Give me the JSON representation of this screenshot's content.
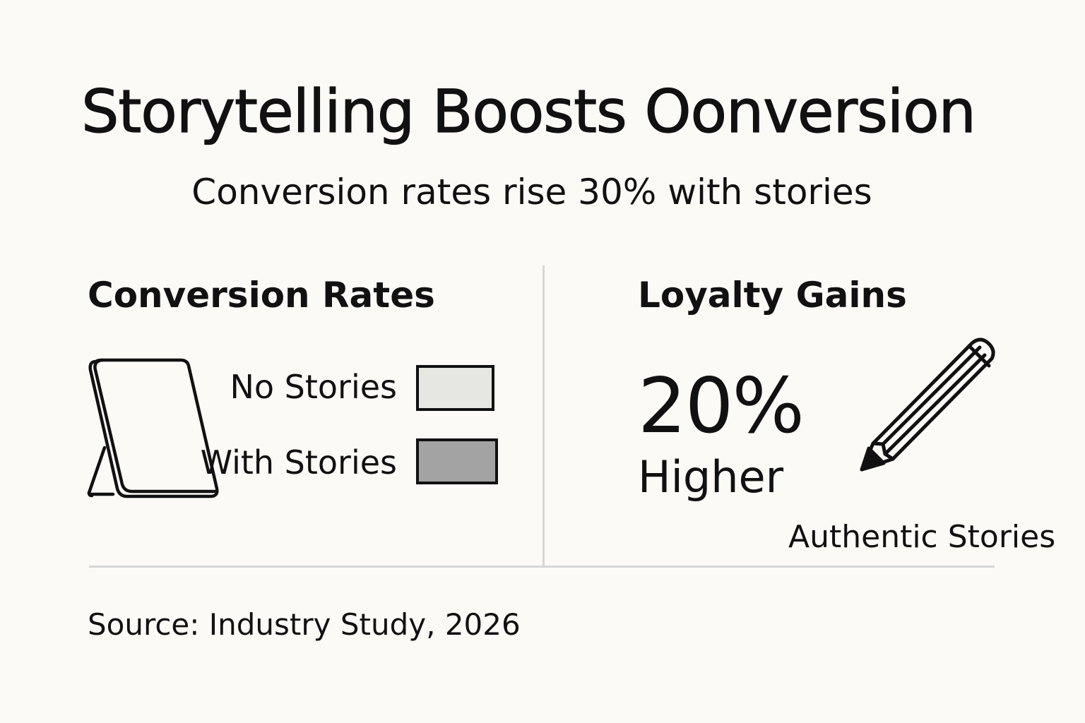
{
  "title": "Storytelling Boosts Oonversion",
  "subtitle": "Conversion rates rise 30% with stories",
  "left_section": {
    "heading": "Conversion Rates",
    "icon": "tablet-icon",
    "legend": [
      {
        "label": "No Stories",
        "color": "#e6e6e2"
      },
      {
        "label": "With Stories",
        "color": "#a3a3a3"
      }
    ]
  },
  "right_section": {
    "heading": "Loyalty Gains",
    "stat_value": "20%",
    "stat_caption": "Higher",
    "icon": "pencil-icon",
    "icon_caption": "Authentic Stories"
  },
  "source": "Source: Industry Study, 2026"
}
